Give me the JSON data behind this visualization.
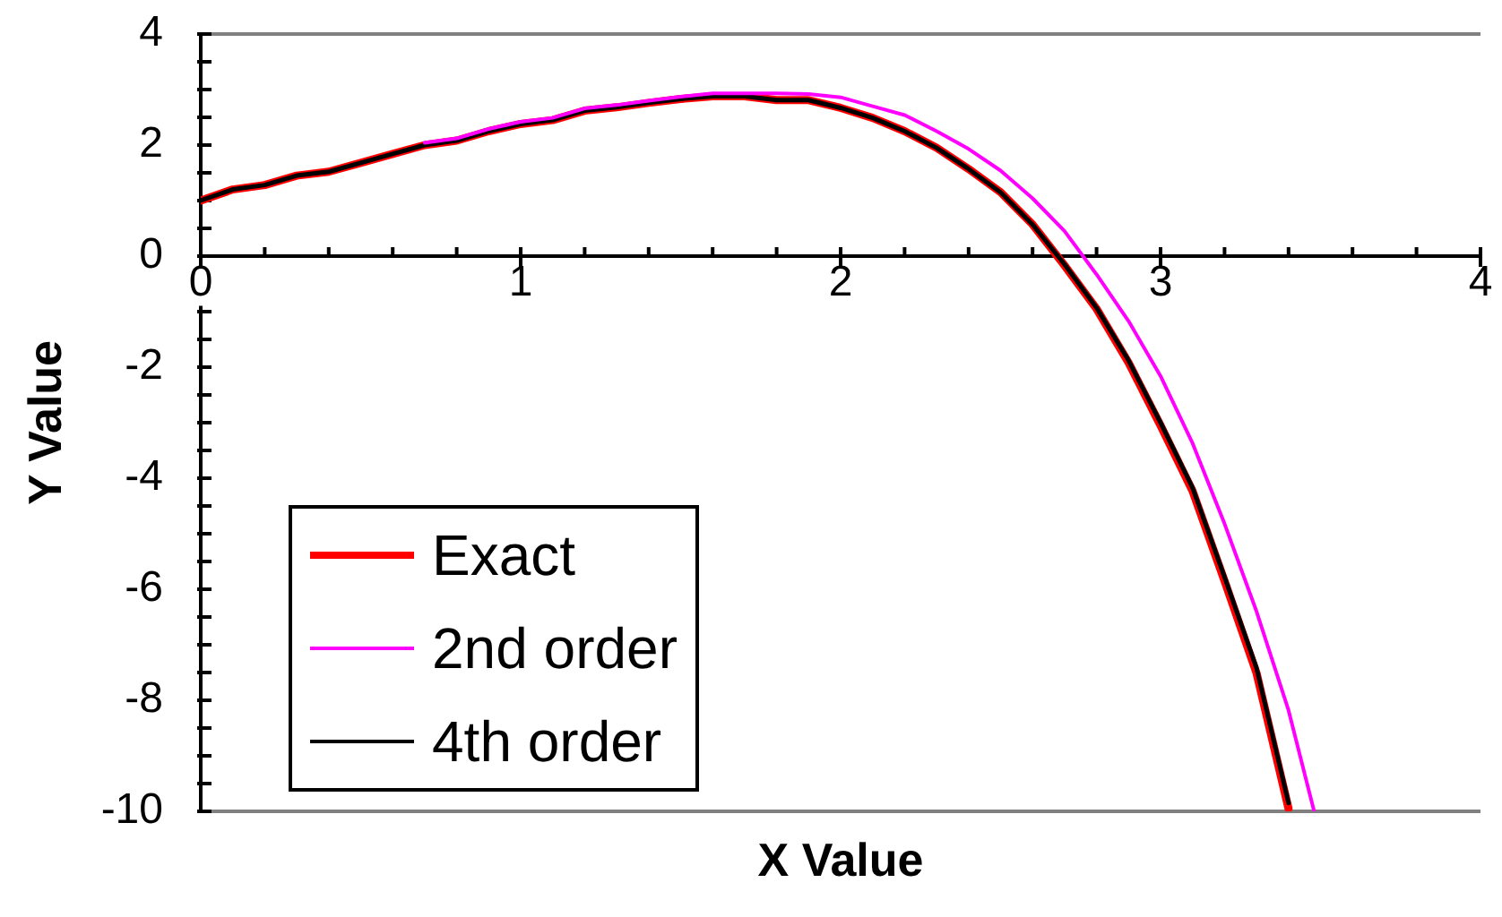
{
  "chart_data": {
    "type": "line",
    "xlabel": "X Value",
    "ylabel": "Y Value",
    "x": [
      0,
      0.1,
      0.2,
      0.3,
      0.4,
      0.5,
      0.6,
      0.7,
      0.8,
      0.9,
      1,
      1.1,
      1.2,
      1.3,
      1.4,
      1.5,
      1.6,
      1.7,
      1.8,
      1.9,
      2,
      2.1,
      2.2,
      2.3,
      2.4,
      2.5,
      2.6,
      2.7,
      2.8,
      2.9,
      3,
      3.1,
      3.2,
      3.3,
      3.4
    ],
    "series": [
      {
        "name": "Exact",
        "color": "#ff0000",
        "values": [
          1,
          1.2,
          1.28,
          1.45,
          1.52,
          1.68,
          1.84,
          2,
          2.08,
          2.25,
          2.38,
          2.45,
          2.62,
          2.68,
          2.76,
          2.83,
          2.88,
          2.88,
          2.81,
          2.81,
          2.67,
          2.49,
          2.25,
          1.95,
          1.57,
          1.15,
          0.57,
          -0.17,
          -0.95,
          -1.92,
          -3.05,
          -4.23,
          -5.85,
          -7.51,
          -9.95
        ]
      },
      {
        "name": "2nd order",
        "color": "#ff00ff",
        "x": [
          0.7,
          0.8,
          0.9,
          1,
          1.1,
          1.2,
          1.3,
          1.4,
          1.5,
          1.6,
          1.7,
          1.8,
          1.9,
          2,
          2.1,
          2.2,
          2.3,
          2.4,
          2.5,
          2.6,
          2.7,
          2.8,
          2.9,
          3,
          3.1,
          3.2,
          3.3,
          3.4,
          3.48
        ],
        "values": [
          2.04,
          2.12,
          2.29,
          2.42,
          2.49,
          2.66,
          2.72,
          2.8,
          2.87,
          2.93,
          2.93,
          2.93,
          2.92,
          2.86,
          2.7,
          2.54,
          2.25,
          1.93,
          1.54,
          1.04,
          0.45,
          -0.33,
          -1.17,
          -2.16,
          -3.37,
          -4.82,
          -6.4,
          -8.18,
          -10
        ]
      },
      {
        "name": "4th order",
        "color": "#000000",
        "values": [
          1,
          1.2,
          1.28,
          1.45,
          1.52,
          1.68,
          1.84,
          2,
          2.08,
          2.25,
          2.38,
          2.45,
          2.62,
          2.68,
          2.76,
          2.83,
          2.88,
          2.88,
          2.81,
          2.81,
          2.67,
          2.49,
          2.25,
          1.95,
          1.57,
          1.15,
          0.57,
          -0.15,
          -0.93,
          -1.88,
          -3,
          -4.17,
          -5.78,
          -7.42,
          -9.85
        ]
      }
    ],
    "xlim": [
      0,
      4
    ],
    "xticks": [
      0,
      {
        "value": 0.2,
        "label": null
      },
      {
        "value": 0.4,
        "label": null
      },
      {
        "value": 0.6,
        "label": null
      },
      {
        "value": 0.8,
        "label": null
      },
      1,
      {
        "value": 1.2,
        "label": null
      },
      {
        "value": 1.4,
        "label": null
      },
      {
        "value": 1.6,
        "label": null
      },
      {
        "value": 1.8,
        "label": null
      },
      2,
      {
        "value": 2.2,
        "label": null
      },
      {
        "value": 2.4,
        "label": null
      },
      {
        "value": 2.6,
        "label": null
      },
      {
        "value": 2.8,
        "label": null
      },
      3,
      {
        "value": 3.2,
        "label": null
      },
      {
        "value": 3.4,
        "label": null
      },
      {
        "value": 3.6,
        "label": null
      },
      {
        "value": 3.8,
        "label": null
      },
      4
    ],
    "ylim": [
      -10,
      4
    ],
    "yticks": [
      -10,
      {
        "value": -9.5,
        "label": null
      },
      {
        "value": -9,
        "label": null
      },
      {
        "value": -8.5,
        "label": null
      },
      -8,
      {
        "value": -7.5,
        "label": null
      },
      {
        "value": -7,
        "label": null
      },
      {
        "value": -6.5,
        "label": null
      },
      -6,
      {
        "value": -5.5,
        "label": null
      },
      {
        "value": -5,
        "label": null
      },
      {
        "value": -4.5,
        "label": null
      },
      -4,
      {
        "value": -3.5,
        "label": null
      },
      {
        "value": -3,
        "label": null
      },
      {
        "value": -2.5,
        "label": null
      },
      -2,
      {
        "value": -1.5,
        "label": null
      },
      {
        "value": -1,
        "label": null
      },
      {
        "value": -0.5,
        "label": null
      },
      0,
      {
        "value": 0.5,
        "label": null
      },
      {
        "value": 1,
        "label": null
      },
      {
        "value": 1.5,
        "label": null
      },
      2,
      {
        "value": 2.5,
        "label": null
      },
      {
        "value": 3,
        "label": null
      },
      {
        "value": 3.5,
        "label": null
      },
      4
    ],
    "legend": "bottom left",
    "marker": "none"
  }
}
